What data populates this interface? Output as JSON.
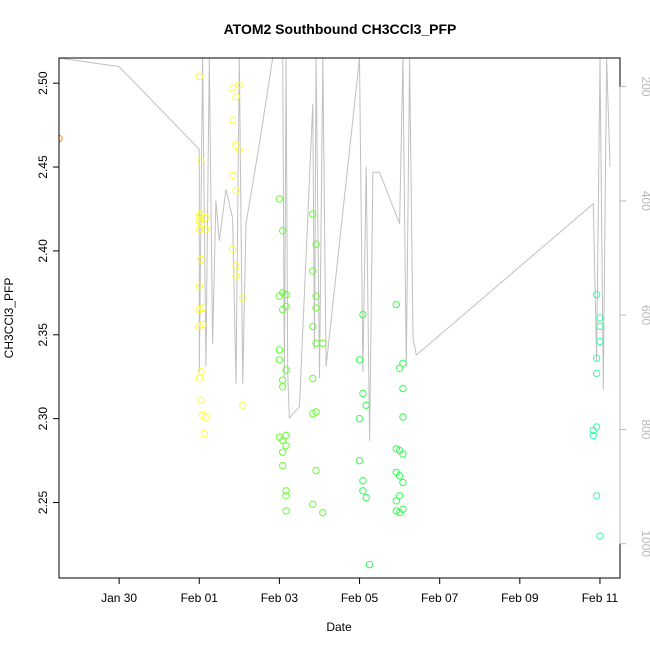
{
  "chart_data": {
    "type": "scatter",
    "title": "ATOM2 Southbound CH3CCl3_PFP",
    "xlabel": "Date",
    "ylabel": "CH3CCl3_PFP",
    "xlim": [
      "2016-01-28T12:00",
      "2016-02-11T12:00"
    ],
    "ylim": [
      2.205,
      2.515
    ],
    "x_ticks": [
      {
        "date": "2016-01-30",
        "label": "Jan 30"
      },
      {
        "date": "2016-02-01",
        "label": "Feb 01"
      },
      {
        "date": "2016-02-03",
        "label": "Feb 03"
      },
      {
        "date": "2016-02-05",
        "label": "Feb 05"
      },
      {
        "date": "2016-02-07",
        "label": "Feb 07"
      },
      {
        "date": "2016-02-09",
        "label": "Feb 09"
      },
      {
        "date": "2016-02-11",
        "label": "Feb 11"
      }
    ],
    "y_ticks": [
      2.25,
      2.3,
      2.35,
      2.4,
      2.45,
      2.5
    ],
    "y_tick_labels": [
      "2.25",
      "2.30",
      "2.35",
      "2.40",
      "2.45",
      "2.50"
    ],
    "right_axis": {
      "ylim": [
        1060,
        150
      ],
      "ticks": [
        200,
        400,
        600,
        800,
        1000
      ],
      "tick_labels": [
        "200",
        "400",
        "600",
        "800",
        "1000"
      ],
      "color": "#b8b8b8"
    },
    "altitude_track": {
      "color": "#c0c0c0",
      "points": [
        [
          "2016-01-28T12:00",
          150
        ],
        [
          "2016-01-30T00:00",
          165
        ],
        [
          "2016-02-01T00:00",
          310
        ],
        [
          "2016-02-01T00:00",
          700
        ],
        [
          "2016-02-01T02:00",
          150
        ],
        [
          "2016-02-01T04:00",
          690
        ],
        [
          "2016-02-01T06:00",
          150
        ],
        [
          "2016-02-01T08:00",
          650
        ],
        [
          "2016-02-01T10:00",
          400
        ],
        [
          "2016-02-01T12:00",
          470
        ],
        [
          "2016-02-01T16:00",
          380
        ],
        [
          "2016-02-01T20:00",
          430
        ],
        [
          "2016-02-01T22:00",
          720
        ],
        [
          "2016-02-02T00:00",
          150
        ],
        [
          "2016-02-02T02:00",
          720
        ],
        [
          "2016-02-02T04:00",
          440
        ],
        [
          "2016-02-02T12:00",
          300
        ],
        [
          "2016-02-02T20:00",
          150
        ],
        [
          "2016-02-03T02:00",
          150
        ],
        [
          "2016-02-03T03:00",
          710
        ],
        [
          "2016-02-03T04:00",
          150
        ],
        [
          "2016-02-03T05:00",
          700
        ],
        [
          "2016-02-03T06:00",
          780
        ],
        [
          "2016-02-03T12:00",
          760
        ],
        [
          "2016-02-03T20:00",
          230
        ],
        [
          "2016-02-03T21:00",
          660
        ],
        [
          "2016-02-03T22:00",
          150
        ],
        [
          "2016-02-04T00:00",
          710
        ],
        [
          "2016-02-04T02:00",
          150
        ],
        [
          "2016-02-04T04:00",
          690
        ],
        [
          "2016-02-05T00:00",
          150
        ],
        [
          "2016-02-05T02:00",
          700
        ],
        [
          "2016-02-05T04:00",
          340
        ],
        [
          "2016-02-05T06:00",
          820
        ],
        [
          "2016-02-05T08:00",
          350
        ],
        [
          "2016-02-05T12:00",
          350
        ],
        [
          "2016-02-06T00:00",
          440
        ],
        [
          "2016-02-06T02:00",
          150
        ],
        [
          "2016-02-06T04:00",
          690
        ],
        [
          "2016-02-06T06:00",
          150
        ],
        [
          "2016-02-06T08:00",
          640
        ],
        [
          "2016-02-06T10:00",
          670
        ],
        [
          "2016-02-10T20:00",
          405
        ],
        [
          "2016-02-10T22:00",
          680
        ],
        [
          "2016-02-11T00:00",
          150
        ],
        [
          "2016-02-11T02:00",
          730
        ],
        [
          "2016-02-11T04:00",
          150
        ],
        [
          "2016-02-11T06:00",
          340
        ]
      ]
    },
    "series": [
      {
        "color": "#ff9900",
        "points": [
          [
            "2016-01-28T12:00",
            2.467
          ]
        ]
      },
      {
        "color": "#ffff33",
        "points": [
          [
            "2016-02-01T00:00",
            2.504
          ],
          [
            "2016-02-01T00:00",
            2.421
          ],
          [
            "2016-02-01T00:00",
            2.418
          ],
          [
            "2016-02-01T00:00",
            2.413
          ],
          [
            "2016-02-01T01:00",
            2.454
          ],
          [
            "2016-02-01T01:00",
            2.416
          ],
          [
            "2016-02-01T01:00",
            2.422
          ],
          [
            "2016-02-01T01:00",
            2.395
          ],
          [
            "2016-02-01T00:00",
            2.379
          ],
          [
            "2016-02-01T02:00",
            2.366
          ],
          [
            "2016-02-01T00:00",
            2.365
          ],
          [
            "2016-02-01T02:00",
            2.356
          ],
          [
            "2016-02-01T00:00",
            2.355
          ],
          [
            "2016-02-01T01:00",
            2.328
          ],
          [
            "2016-02-01T00:00",
            2.324
          ],
          [
            "2016-02-01T01:00",
            2.311
          ],
          [
            "2016-02-01T02:00",
            2.302
          ],
          [
            "2016-02-01T04:00",
            2.301
          ],
          [
            "2016-02-01T03:00",
            2.291
          ],
          [
            "2016-02-01T04:00",
            2.42
          ],
          [
            "2016-02-01T04:00",
            2.413
          ],
          [
            "2016-02-01T20:00",
            2.497
          ],
          [
            "2016-02-01T22:00",
            2.492
          ],
          [
            "2016-02-02T00:00",
            2.499
          ],
          [
            "2016-02-01T20:00",
            2.478
          ],
          [
            "2016-02-01T22:00",
            2.463
          ],
          [
            "2016-02-02T00:00",
            2.46
          ],
          [
            "2016-02-01T20:00",
            2.445
          ],
          [
            "2016-02-01T22:00",
            2.436
          ],
          [
            "2016-02-01T20:00",
            2.401
          ],
          [
            "2016-02-01T22:00",
            2.391
          ],
          [
            "2016-02-01T22:00",
            2.385
          ],
          [
            "2016-02-02T02:00",
            2.372
          ],
          [
            "2016-02-02T02:00",
            2.308
          ]
        ]
      },
      {
        "color": "#66ff33",
        "points": [
          [
            "2016-02-03T00:00",
            2.431
          ],
          [
            "2016-02-03T02:00",
            2.412
          ],
          [
            "2016-02-03T02:00",
            2.375
          ],
          [
            "2016-02-03T04:00",
            2.374
          ],
          [
            "2016-02-03T00:00",
            2.373
          ],
          [
            "2016-02-03T04:00",
            2.367
          ],
          [
            "2016-02-03T02:00",
            2.365
          ],
          [
            "2016-02-03T00:00",
            2.341
          ],
          [
            "2016-02-03T00:00",
            2.335
          ],
          [
            "2016-02-03T04:00",
            2.329
          ],
          [
            "2016-02-03T02:00",
            2.323
          ],
          [
            "2016-02-03T02:00",
            2.319
          ],
          [
            "2016-02-03T04:00",
            2.29
          ],
          [
            "2016-02-03T00:00",
            2.289
          ],
          [
            "2016-02-03T02:00",
            2.287
          ],
          [
            "2016-02-03T04:00",
            2.284
          ],
          [
            "2016-02-03T02:00",
            2.28
          ],
          [
            "2016-02-03T02:00",
            2.272
          ],
          [
            "2016-02-03T04:00",
            2.257
          ],
          [
            "2016-02-03T04:00",
            2.254
          ],
          [
            "2016-02-03T04:00",
            2.245
          ],
          [
            "2016-02-03T20:00",
            2.422
          ],
          [
            "2016-02-03T22:00",
            2.404
          ],
          [
            "2016-02-03T20:00",
            2.388
          ],
          [
            "2016-02-03T22:00",
            2.373
          ],
          [
            "2016-02-03T22:00",
            2.366
          ],
          [
            "2016-02-03T20:00",
            2.355
          ],
          [
            "2016-02-03T22:00",
            2.345
          ],
          [
            "2016-02-04T02:00",
            2.345
          ],
          [
            "2016-02-03T20:00",
            2.324
          ],
          [
            "2016-02-03T22:00",
            2.304
          ],
          [
            "2016-02-03T20:00",
            2.303
          ],
          [
            "2016-02-03T22:00",
            2.269
          ],
          [
            "2016-02-03T20:00",
            2.249
          ],
          [
            "2016-02-04T02:00",
            2.244
          ]
        ]
      },
      {
        "color": "#33ff55",
        "points": [
          [
            "2016-02-05T02:00",
            2.362
          ],
          [
            "2016-02-05T00:00",
            2.335
          ],
          [
            "2016-02-05T02:00",
            2.315
          ],
          [
            "2016-02-05T04:00",
            2.308
          ],
          [
            "2016-02-05T00:00",
            2.3
          ],
          [
            "2016-02-05T00:00",
            2.275
          ],
          [
            "2016-02-05T02:00",
            2.263
          ],
          [
            "2016-02-05T02:00",
            2.257
          ],
          [
            "2016-02-05T04:00",
            2.253
          ],
          [
            "2016-02-05T06:00",
            2.213
          ],
          [
            "2016-02-05T22:00",
            2.368
          ],
          [
            "2016-02-06T02:00",
            2.333
          ],
          [
            "2016-02-06T00:00",
            2.33
          ],
          [
            "2016-02-06T02:00",
            2.318
          ],
          [
            "2016-02-06T02:00",
            2.301
          ],
          [
            "2016-02-05T22:00",
            2.282
          ],
          [
            "2016-02-06T00:00",
            2.281
          ],
          [
            "2016-02-06T02:00",
            2.279
          ],
          [
            "2016-02-05T22:00",
            2.268
          ],
          [
            "2016-02-06T00:00",
            2.266
          ],
          [
            "2016-02-06T02:00",
            2.262
          ],
          [
            "2016-02-06T00:00",
            2.254
          ],
          [
            "2016-02-05T22:00",
            2.251
          ],
          [
            "2016-02-06T02:00",
            2.246
          ],
          [
            "2016-02-05T22:00",
            2.245
          ],
          [
            "2016-02-06T00:00",
            2.244
          ]
        ]
      },
      {
        "color": "#33ffaa",
        "points": [
          [
            "2016-02-10T22:00",
            2.374
          ],
          [
            "2016-02-11T00:00",
            2.36
          ],
          [
            "2016-02-11T00:00",
            2.355
          ],
          [
            "2016-02-11T00:00",
            2.346
          ],
          [
            "2016-02-10T22:00",
            2.336
          ],
          [
            "2016-02-10T22:00",
            2.327
          ],
          [
            "2016-02-10T22:00",
            2.295
          ],
          [
            "2016-02-10T20:00",
            2.293
          ],
          [
            "2016-02-10T20:00",
            2.29
          ],
          [
            "2016-02-10T22:00",
            2.254
          ],
          [
            "2016-02-11T00:00",
            2.23
          ]
        ]
      }
    ]
  }
}
